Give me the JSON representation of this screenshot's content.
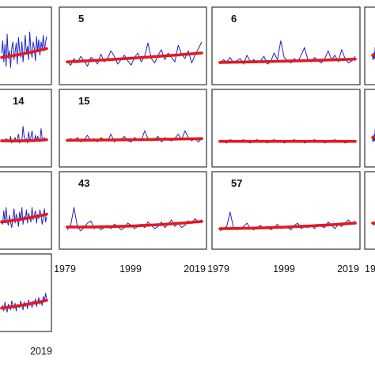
{
  "chart_data": [
    {
      "type": "line",
      "panel_label": "",
      "x_start": 1979,
      "x_end": 2019,
      "ylim": [
        0,
        4
      ],
      "series": [
        {
          "role": "annual",
          "color": "#1f22cc",
          "values": [
            2.0,
            3.1,
            1.2,
            2.8,
            0.8,
            3.7,
            1.5,
            2.2,
            0.7,
            2.4,
            3.0,
            1.4,
            2.1,
            2.9,
            1.0,
            3.4,
            2.2,
            1.6,
            3.0,
            1.2,
            2.3,
            3.6,
            1.9,
            2.6,
            1.4,
            3.9,
            2.2,
            1.6,
            3.0,
            2.5,
            1.3,
            3.5,
            2.1,
            3.2,
            1.8,
            3.0,
            2.4,
            3.6,
            2.2,
            3.0,
            3.5
          ]
        },
        {
          "role": "trend",
          "color": "#e31a1c",
          "start": 1.6,
          "end": 2.4,
          "bend": 0.05
        }
      ]
    },
    {
      "type": "line",
      "panel_label": "5",
      "x_start": 1979,
      "x_end": 2019,
      "ylim": [
        0,
        4
      ],
      "series": [
        {
          "role": "annual",
          "color": "#1f22cc",
          "values": [
            1.2,
            0.9,
            1.5,
            1.1,
            1.7,
            1.3,
            0.8,
            1.6,
            1.4,
            1.0,
            1.9,
            1.2,
            1.5,
            2.2,
            1.7,
            1.0,
            1.4,
            1.8,
            1.3,
            0.9,
            1.6,
            2.0,
            1.2,
            1.7,
            2.9,
            1.5,
            1.1,
            1.8,
            2.3,
            1.4,
            2.0,
            1.6,
            1.2,
            2.7,
            1.9,
            1.5,
            2.2,
            1.1,
            1.8,
            2.4,
            3.0
          ]
        },
        {
          "role": "trend",
          "color": "#e31a1c",
          "start": 1.2,
          "end": 2.0,
          "bend": 0.05
        }
      ]
    },
    {
      "type": "line",
      "panel_label": "6",
      "x_start": 1979,
      "x_end": 2019,
      "ylim": [
        0,
        4
      ],
      "series": [
        {
          "role": "annual",
          "color": "#1f22cc",
          "values": [
            1.0,
            1.4,
            1.2,
            1.6,
            1.1,
            1.3,
            1.5,
            1.0,
            1.8,
            1.2,
            1.4,
            1.1,
            1.3,
            1.7,
            1.0,
            1.2,
            2.0,
            1.4,
            3.1,
            1.6,
            1.3,
            1.1,
            1.5,
            1.2,
            1.8,
            2.5,
            1.4,
            1.2,
            1.6,
            1.3,
            1.1,
            1.5,
            2.2,
            1.4,
            1.8,
            1.2,
            2.3,
            1.5,
            1.1,
            1.3,
            1.7
          ]
        },
        {
          "role": "trend",
          "color": "#e31a1c",
          "start": 1.15,
          "end": 1.45,
          "bend": 0.03
        }
      ]
    },
    {
      "type": "line",
      "panel_label": "",
      "x_start": 1979,
      "x_end": 2019,
      "ylim": [
        0,
        4
      ],
      "series": [
        {
          "role": "annual",
          "color": "#1f22cc",
          "values": [
            1.7,
            1.4,
            2.0,
            1.9,
            1.5,
            1.8,
            1.6,
            2.1,
            1.5,
            2.5,
            1.8,
            1.4,
            2.2,
            2.0,
            1.7,
            1.5,
            2.6,
            1.9,
            1.6,
            2.1,
            1.8,
            2.4,
            1.7,
            1.5,
            2.0,
            1.9,
            2.3,
            1.6,
            1.8,
            2.5,
            2.2,
            1.7,
            1.9,
            2.1,
            2.4,
            1.8,
            1.6,
            2.5,
            2.0,
            1.7,
            2.3
          ]
        },
        {
          "role": "trend",
          "color": "#e31a1c",
          "start": 1.8,
          "end": 1.9,
          "bend": 0.03
        }
      ]
    },
    {
      "type": "line",
      "panel_label": "14",
      "x_start": 1979,
      "x_end": 2019,
      "ylim": [
        0,
        4
      ],
      "series": [
        {
          "role": "annual",
          "color": "#1f22cc",
          "values": [
            1.5,
            1.6,
            1.4,
            1.5,
            1.7,
            1.6,
            1.5,
            1.4,
            1.9,
            1.3,
            1.6,
            1.5,
            1.8,
            1.4,
            1.7,
            2.1,
            1.3,
            1.6,
            1.5,
            2.8,
            1.9,
            1.4,
            1.7,
            1.3,
            2.3,
            1.5,
            1.8,
            2.4,
            1.6,
            1.4,
            2.0,
            1.5,
            1.9,
            1.6,
            1.4,
            2.6,
            1.7,
            1.5,
            1.8,
            1.6,
            1.7
          ]
        },
        {
          "role": "trend",
          "color": "#e31a1c",
          "start": 1.5,
          "end": 1.6,
          "bend": 0.05
        }
      ]
    },
    {
      "type": "line",
      "panel_label": "15",
      "x_start": 1979,
      "x_end": 2019,
      "ylim": [
        0,
        4
      ],
      "series": [
        {
          "role": "annual",
          "color": "#1f22cc",
          "values": [
            1.6,
            1.7,
            1.5,
            1.8,
            1.4,
            1.6,
            2.0,
            1.5,
            1.7,
            1.4,
            1.8,
            1.6,
            1.5,
            2.1,
            1.4,
            1.7,
            1.6,
            1.9,
            1.5,
            1.4,
            1.8,
            1.6,
            1.5,
            2.4,
            1.7,
            1.5,
            1.6,
            1.9,
            1.4,
            1.8,
            1.6,
            1.5,
            1.7,
            2.1,
            1.6,
            2.4,
            1.8,
            1.5,
            1.7,
            1.4,
            1.7
          ]
        },
        {
          "role": "trend",
          "color": "#e31a1c",
          "start": 1.55,
          "end": 1.7,
          "bend": 0.02
        }
      ]
    },
    {
      "type": "line",
      "panel_label": "",
      "x_start": 1979,
      "x_end": 2019,
      "ylim": [
        0,
        4
      ],
      "series": [
        {
          "role": "annual",
          "color": "#1f22cc",
          "values": [
            1.5,
            1.4,
            1.3,
            1.6,
            1.5,
            1.4,
            1.5,
            1.6,
            1.4,
            1.3,
            1.5,
            1.6,
            1.4,
            1.5,
            1.3,
            1.5,
            1.6,
            1.4,
            1.5,
            1.3,
            1.4,
            1.5,
            1.6,
            1.4,
            1.5,
            1.3,
            1.4,
            1.5,
            1.6,
            1.4,
            1.5,
            1.3,
            1.4,
            1.5,
            1.6,
            1.4,
            1.5,
            1.3,
            1.4,
            1.5,
            1.4
          ]
        },
        {
          "role": "trend",
          "color": "#e31a1c",
          "start": 1.45,
          "end": 1.45,
          "bend": 0.0
        }
      ]
    },
    {
      "type": "line",
      "panel_label": "",
      "x_start": 1979,
      "x_end": 2019,
      "ylim": [
        0,
        4
      ],
      "series": [
        {
          "role": "annual",
          "color": "#1f22cc",
          "values": [
            1.8,
            1.4,
            2.6,
            1.5,
            2.9,
            1.7,
            1.3,
            2.2,
            1.6,
            1.1,
            2.0,
            2.8,
            1.5,
            2.3,
            1.9,
            1.2,
            2.5,
            1.7,
            2.9,
            1.4,
            2.1,
            1.8,
            2.7,
            1.5,
            2.4,
            2.0,
            1.6,
            2.9,
            1.8,
            2.2,
            2.6,
            1.5,
            2.3,
            1.9,
            2.7,
            2.2,
            1.4,
            2.0,
            2.8,
            1.6,
            2.1
          ]
        },
        {
          "role": "trend",
          "color": "#e31a1c",
          "start": 1.6,
          "end": 2.3,
          "bend": 0.05
        }
      ]
    },
    {
      "type": "line",
      "panel_label": "43",
      "x_start": 1979,
      "x_end": 2019,
      "ylim": [
        0,
        4
      ],
      "series": [
        {
          "role": "annual",
          "color": "#1f22cc",
          "values": [
            0.9,
            1.3,
            2.9,
            1.2,
            0.8,
            1.1,
            1.5,
            1.7,
            1.0,
            1.2,
            0.9,
            1.1,
            1.3,
            1.0,
            1.4,
            1.2,
            0.9,
            1.1,
            1.5,
            1.3,
            1.0,
            1.2,
            1.4,
            1.1,
            1.6,
            1.3,
            1.0,
            1.2,
            1.6,
            1.1,
            1.4,
            1.8,
            1.2,
            1.5,
            1.1,
            1.3,
            1.7,
            1.5,
            1.9,
            1.6,
            1.8
          ]
        },
        {
          "role": "trend",
          "color": "#e31a1c",
          "start": 1.15,
          "end": 1.65,
          "bend": 0.15
        }
      ]
    },
    {
      "type": "line",
      "panel_label": "57",
      "x_start": 1979,
      "x_end": 2019,
      "ylim": [
        0,
        4
      ],
      "series": [
        {
          "role": "annual",
          "color": "#1f22cc",
          "values": [
            0.8,
            1.0,
            1.2,
            2.5,
            1.1,
            0.9,
            1.0,
            1.2,
            1.5,
            1.0,
            0.9,
            1.1,
            1.3,
            1.0,
            1.2,
            0.9,
            1.1,
            1.4,
            1.0,
            1.2,
            1.1,
            0.9,
            1.3,
            1.5,
            1.0,
            1.2,
            1.1,
            1.3,
            1.0,
            1.4,
            1.2,
            1.1,
            1.6,
            1.3,
            1.0,
            1.4,
            1.2,
            1.5,
            1.8,
            1.4,
            1.7
          ]
        },
        {
          "role": "trend",
          "color": "#e31a1c",
          "start": 1.0,
          "end": 1.5,
          "bend": 0.1
        }
      ]
    },
    {
      "type": "line",
      "panel_label": "",
      "x_start": 1979,
      "x_end": 2019,
      "ylim": [
        0,
        4
      ],
      "series": [
        {
          "role": "annual",
          "color": "#1f22cc",
          "values": [
            1.5,
            1.4,
            1.6,
            1.5,
            1.3,
            1.6,
            1.5,
            1.4,
            1.5,
            1.6,
            1.4,
            1.5,
            1.3,
            1.5,
            1.6,
            1.4,
            1.5,
            1.6,
            1.4,
            1.3,
            1.5,
            1.6,
            1.4,
            1.5,
            1.6,
            1.4,
            1.5,
            1.3,
            1.5,
            1.6,
            1.4,
            1.5,
            1.6,
            1.4,
            1.3,
            1.5,
            1.6,
            1.4,
            1.5,
            1.6,
            1.5
          ]
        },
        {
          "role": "trend",
          "color": "#e31a1c",
          "start": 1.5,
          "end": 1.5,
          "bend": 0.0
        }
      ]
    },
    {
      "type": "line",
      "panel_label": "",
      "x_start": 1979,
      "x_end": 2019,
      "ylim": [
        0,
        4
      ],
      "series": [
        {
          "role": "annual",
          "color": "#1f22cc",
          "values": [
            1.2,
            1.5,
            1.0,
            1.8,
            1.3,
            0.9,
            1.6,
            1.4,
            1.1,
            1.9,
            1.5,
            1.2,
            1.7,
            1.0,
            1.6,
            1.4,
            1.3,
            1.9,
            1.5,
            1.1,
            1.8,
            1.4,
            1.7,
            1.2,
            2.0,
            1.5,
            1.8,
            1.3,
            1.9,
            1.6,
            2.1,
            1.4,
            1.8,
            2.2,
            1.6,
            1.9,
            1.5,
            2.3,
            1.8,
            2.6,
            2.0
          ]
        },
        {
          "role": "trend",
          "color": "#e31a1c",
          "start": 1.25,
          "end": 1.95,
          "bend": 0.05
        }
      ]
    }
  ],
  "axes": {
    "x_ticks": [
      "1979",
      "1999",
      "2019"
    ],
    "x_ticks_partial_row1_col4": "19",
    "x_ticks_row4_visible": "2019"
  },
  "colors": {
    "annual_line": "#1f22cc",
    "trend_line": "#e31a1c",
    "frame": "#333333"
  }
}
